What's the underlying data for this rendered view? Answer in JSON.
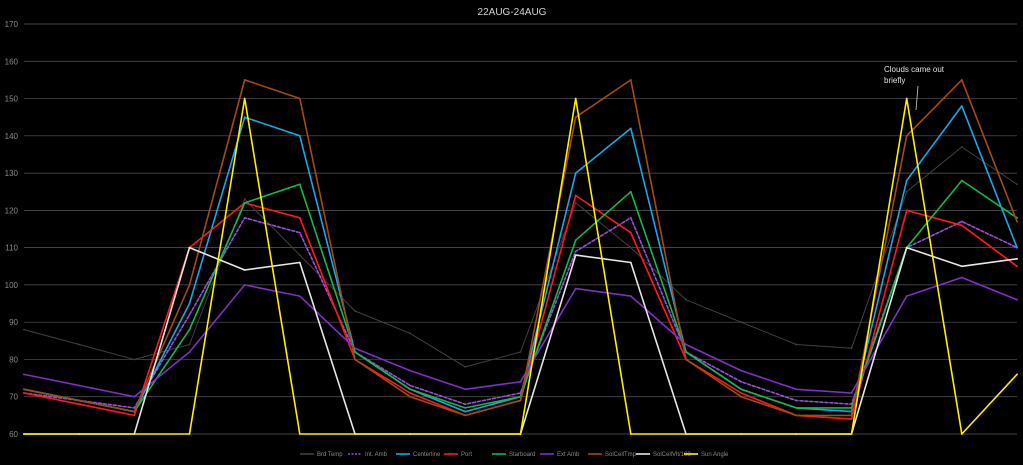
{
  "chart_data": {
    "type": "line",
    "title": "22AUG-24AUG",
    "xlabel": "",
    "ylabel": "",
    "ylim": [
      60,
      170
    ],
    "yticks": [
      60,
      70,
      80,
      90,
      100,
      110,
      120,
      130,
      140,
      150,
      160,
      170
    ],
    "grid": true,
    "legend_position": "bottom",
    "annotation": {
      "text_lines": [
        "Clouds came out",
        "briefly"
      ]
    },
    "x": [
      0,
      4,
      8,
      12,
      16,
      20,
      24,
      28,
      32,
      36,
      40,
      44,
      48,
      52,
      56,
      60,
      64,
      68,
      72
    ],
    "series": [
      {
        "name": "Brd Temp",
        "color": "#404040",
        "style": "solid",
        "values": [
          88,
          84,
          80,
          84,
          123,
          108,
          93,
          87,
          78,
          82,
          122,
          110,
          96,
          90,
          84,
          83,
          125,
          137,
          127
        ]
      },
      {
        "name": "Int. Amb",
        "color": "#9a4fd8",
        "style": "dashed",
        "values": [
          71,
          69,
          67,
          92,
          118,
          114,
          82,
          73,
          68,
          71,
          109,
          118,
          82,
          74,
          69,
          68,
          110,
          117,
          110
        ]
      },
      {
        "name": "Centerline",
        "color": "#1aa7e8",
        "style": "solid",
        "values": [
          72,
          69,
          66,
          95,
          145,
          140,
          82,
          72,
          66,
          70,
          130,
          142,
          82,
          72,
          67,
          66,
          128,
          148,
          110
        ]
      },
      {
        "name": "Port",
        "color": "#ff1a1a",
        "style": "solid",
        "values": [
          71,
          68,
          65,
          110,
          122,
          118,
          80,
          71,
          65,
          69,
          124,
          114,
          80,
          71,
          65,
          64,
          120,
          116,
          105
        ]
      },
      {
        "name": "Starboard",
        "color": "#15b84a",
        "style": "solid",
        "values": [
          72,
          69,
          66,
          88,
          122,
          127,
          82,
          72,
          67,
          70,
          112,
          125,
          82,
          72,
          67,
          67,
          110,
          128,
          118
        ]
      },
      {
        "name": "Ext Amb",
        "color": "#7e30c8",
        "style": "solid",
        "values": [
          76,
          73,
          70,
          82,
          100,
          97,
          83,
          77,
          72,
          74,
          99,
          97,
          84,
          77,
          72,
          71,
          97,
          102,
          96
        ]
      },
      {
        "name": "SolCellTmp",
        "color": "#a44a12",
        "style": "solid",
        "values": [
          72,
          69,
          66,
          100,
          155,
          150,
          80,
          70,
          65,
          69,
          145,
          155,
          80,
          70,
          65,
          65,
          140,
          155,
          117
        ]
      },
      {
        "name": "SolCellVlt/100",
        "color": "#e6e6e6",
        "style": "solid",
        "values": [
          60,
          60,
          60,
          110,
          104,
          106,
          60,
          60,
          60,
          60,
          108,
          106,
          60,
          60,
          60,
          60,
          110,
          105,
          107
        ]
      },
      {
        "name": "Sun Angle",
        "color": "#ffee00",
        "style": "solid",
        "values": [
          60,
          60,
          60,
          60,
          150,
          60,
          60,
          60,
          60,
          60,
          150,
          60,
          60,
          60,
          60,
          60,
          150,
          60,
          76
        ]
      }
    ]
  }
}
